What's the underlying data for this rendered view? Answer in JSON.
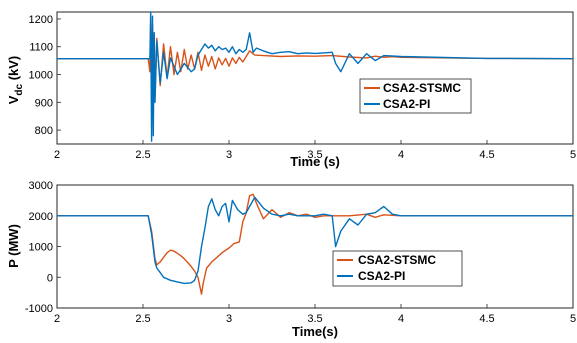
{
  "chart_data": [
    {
      "type": "line",
      "xlabel": "Time (s)",
      "ylabel": "V",
      "ylabel_subscript": "dc",
      "ylabel_unit": " (kV)",
      "xlim": [
        2,
        5
      ],
      "ylim": [
        750,
        1225
      ],
      "xticks": [
        2,
        2.5,
        3,
        3.5,
        4,
        4.5,
        5
      ],
      "xtick_labels": [
        "2",
        "2.5",
        "3",
        "3.5",
        "4",
        "4.5",
        "5"
      ],
      "yticks": [
        800,
        900,
        1000,
        1100,
        1200
      ],
      "ytick_labels": [
        "800",
        "900",
        "1000",
        "1100",
        "1200"
      ],
      "legend_position": "right",
      "series": [
        {
          "name": "CSA2-STSMC",
          "color": "#D95319",
          "x": [
            2.0,
            2.53,
            2.54,
            2.545,
            2.55,
            2.555,
            2.56,
            2.565,
            2.57,
            2.58,
            2.6,
            2.62,
            2.64,
            2.66,
            2.68,
            2.7,
            2.72,
            2.74,
            2.76,
            2.78,
            2.8,
            2.82,
            2.84,
            2.86,
            2.88,
            2.9,
            2.92,
            2.94,
            2.96,
            2.98,
            3.0,
            3.02,
            3.04,
            3.06,
            3.08,
            3.1,
            3.12,
            3.15,
            3.2,
            3.3,
            3.4,
            3.5,
            3.6,
            3.7,
            3.8,
            3.85,
            3.9,
            3.95,
            4.0,
            4.5,
            5.0
          ],
          "y": [
            1057,
            1057,
            1010,
            1200,
            900,
            1180,
            950,
            1150,
            920,
            1130,
            960,
            1110,
            990,
            1100,
            1000,
            1080,
            1010,
            1090,
            1020,
            1070,
            1020,
            1080,
            1015,
            1070,
            1030,
            1065,
            1020,
            1060,
            1035,
            1058,
            1030,
            1060,
            1040,
            1062,
            1045,
            1065,
            1085,
            1070,
            1068,
            1065,
            1067,
            1066,
            1068,
            1063,
            1060,
            1066,
            1062,
            1064,
            1062,
            1058,
            1057
          ]
        },
        {
          "name": "CSA2-PI",
          "color": "#0072BD",
          "x": [
            2.0,
            2.54,
            2.545,
            2.55,
            2.555,
            2.56,
            2.565,
            2.57,
            2.58,
            2.6,
            2.62,
            2.64,
            2.66,
            2.7,
            2.74,
            2.78,
            2.8,
            2.82,
            2.84,
            2.86,
            2.88,
            2.9,
            2.92,
            2.94,
            2.96,
            2.98,
            3.0,
            3.02,
            3.04,
            3.06,
            3.08,
            3.1,
            3.12,
            3.14,
            3.16,
            3.2,
            3.25,
            3.3,
            3.35,
            3.4,
            3.45,
            3.5,
            3.55,
            3.6,
            3.62,
            3.65,
            3.7,
            3.75,
            3.8,
            3.85,
            3.9,
            4.0,
            4.5,
            5.0
          ],
          "y": [
            1057,
            1057,
            1225,
            760,
            1210,
            780,
            1150,
            900,
            1120,
            970,
            1080,
            985,
            1060,
            1000,
            1040,
            1010,
            1020,
            1070,
            1090,
            1110,
            1095,
            1105,
            1085,
            1100,
            1090,
            1095,
            1080,
            1100,
            1075,
            1090,
            1080,
            1090,
            1150,
            1080,
            1095,
            1085,
            1075,
            1080,
            1082,
            1075,
            1078,
            1076,
            1078,
            1080,
            1040,
            1010,
            1075,
            1040,
            1075,
            1050,
            1068,
            1065,
            1058,
            1057
          ]
        }
      ]
    },
    {
      "type": "line",
      "xlabel": "Time(s)",
      "ylabel": "P (MW)",
      "xlim": [
        2,
        5
      ],
      "ylim": [
        -1000,
        3000
      ],
      "xticks": [
        2,
        2.5,
        3,
        3.5,
        4,
        4.5,
        5
      ],
      "xtick_labels": [
        "2",
        "2.5",
        "3",
        "3.5",
        "4",
        "4.5",
        "5"
      ],
      "yticks": [
        -1000,
        0,
        1000,
        2000,
        3000
      ],
      "ytick_labels": [
        "-1000",
        "0",
        "1000",
        "2000",
        "3000"
      ],
      "legend_position": "right",
      "series": [
        {
          "name": "CSA2-STSMC",
          "color": "#D95319",
          "x": [
            2.0,
            2.53,
            2.55,
            2.57,
            2.58,
            2.6,
            2.62,
            2.64,
            2.66,
            2.68,
            2.7,
            2.72,
            2.74,
            2.76,
            2.78,
            2.8,
            2.82,
            2.84,
            2.85,
            2.87,
            2.9,
            2.93,
            2.96,
            3.0,
            3.03,
            3.06,
            3.08,
            3.1,
            3.12,
            3.14,
            3.16,
            3.2,
            3.25,
            3.3,
            3.35,
            3.4,
            3.45,
            3.5,
            3.55,
            3.6,
            3.7,
            3.8,
            3.85,
            3.9,
            4.0,
            4.5,
            5.0
          ],
          "y": [
            2000,
            2000,
            1500,
            600,
            400,
            500,
            650,
            800,
            880,
            850,
            780,
            700,
            600,
            480,
            350,
            200,
            0,
            -550,
            -200,
            300,
            500,
            650,
            800,
            950,
            1100,
            1150,
            1800,
            2100,
            2650,
            2700,
            2400,
            1900,
            2200,
            1950,
            2100,
            2000,
            2050,
            1950,
            2000,
            2000,
            2000,
            2050,
            1950,
            2030,
            2000,
            2000,
            2000
          ]
        },
        {
          "name": "CSA2-PI",
          "color": "#0072BD",
          "x": [
            2.0,
            2.53,
            2.55,
            2.57,
            2.58,
            2.6,
            2.62,
            2.64,
            2.66,
            2.7,
            2.74,
            2.78,
            2.8,
            2.82,
            2.84,
            2.86,
            2.88,
            2.9,
            2.92,
            2.94,
            2.96,
            2.98,
            3.0,
            3.02,
            3.05,
            3.08,
            3.1,
            3.12,
            3.15,
            3.2,
            3.25,
            3.3,
            3.35,
            3.4,
            3.45,
            3.5,
            3.55,
            3.6,
            3.62,
            3.65,
            3.7,
            3.75,
            3.8,
            3.85,
            3.9,
            3.95,
            4.0,
            4.5,
            5.0
          ],
          "y": [
            2000,
            2000,
            1400,
            500,
            300,
            150,
            0,
            -50,
            -100,
            -150,
            -200,
            -180,
            -100,
            200,
            1000,
            1600,
            2300,
            2550,
            2200,
            2000,
            2300,
            2400,
            1800,
            2500,
            2200,
            2050,
            2100,
            2300,
            2600,
            2250,
            2050,
            2000,
            2050,
            2000,
            2000,
            2000,
            2050,
            2000,
            1000,
            1500,
            1900,
            1700,
            2050,
            2100,
            2300,
            2050,
            2000,
            2000,
            2000
          ]
        }
      ]
    }
  ]
}
